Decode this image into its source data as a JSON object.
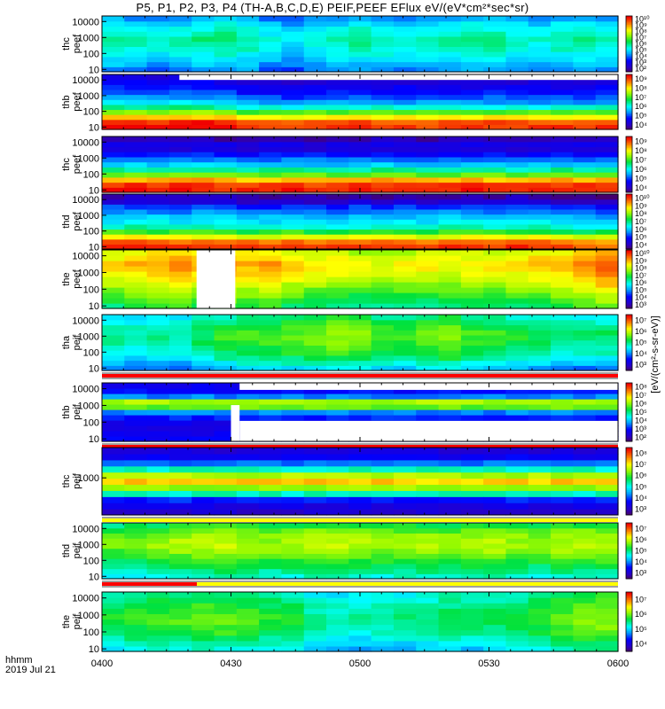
{
  "chart_data": {
    "type": "heatmap",
    "title": "P5, P1, P2, P3, P4 (TH-A,B,C,D,E) PEIF,PEEF EFlux eV/(eV*cm²*sec*sr)",
    "colorbar_label": "[eV/(cm²-s-sr-eV)]",
    "xaxis": {
      "label_line1": "hhmm",
      "label_line2": "2019 Jul 21",
      "ticks": [
        "0400",
        "0430",
        "0500",
        "0530",
        "0600"
      ],
      "range_minutes": [
        0,
        120
      ]
    },
    "panels": [
      {
        "ylabel_line1": "thc",
        "ylabel_line2": "peef",
        "yticks": [
          "10",
          "100",
          "1000",
          "10000"
        ],
        "cbar_ticks": [
          "10²",
          "10³",
          "10⁴",
          "10⁵",
          "10⁶",
          "10⁷",
          "10⁸",
          "10⁹",
          "10¹⁰"
        ],
        "profile": [
          0.3,
          0.34,
          0.38,
          0.41,
          0.44,
          0.46,
          0.47,
          0.45,
          0.42,
          0.38,
          0.32
        ],
        "time_mod": [
          0.02,
          0.0,
          -0.02,
          0.0,
          0.03,
          0.04,
          0.02,
          -0.03,
          -0.06,
          -0.02,
          0.0,
          0.02,
          0.01,
          -0.01,
          0.0,
          0.02,
          0.03,
          0.02,
          0.0,
          -0.02,
          0.02,
          0.02,
          0.01
        ],
        "gaps": [],
        "bar": null
      },
      {
        "ylabel_line1": "thb",
        "ylabel_line2": "peef",
        "yticks": [
          "10",
          "100",
          "1000",
          "10000"
        ],
        "cbar_ticks": [
          "10⁴",
          "10⁵",
          "10⁶",
          "10⁷",
          "10⁸",
          "10⁹"
        ],
        "profile": [
          0.96,
          0.93,
          0.78,
          0.62,
          0.46,
          0.34,
          0.27,
          0.22,
          0.18,
          0.14,
          0.08
        ],
        "time_mod": [
          0.04,
          0.04,
          0.03,
          0.05,
          0.04,
          0.02,
          -0.02,
          -0.02,
          -0.03,
          -0.02,
          -0.02,
          -0.01,
          -0.02,
          -0.01,
          -0.02,
          -0.01,
          -0.02,
          -0.01,
          -0.02,
          -0.02,
          -0.01,
          -0.02,
          -0.01
        ],
        "gaps": [
          [
            18,
            120,
            0.9,
            1.0
          ]
        ],
        "bar": null
      },
      {
        "ylabel_line1": "thc",
        "ylabel_line2": "peef",
        "yticks": [
          "10",
          "100",
          "1000",
          "10000"
        ],
        "cbar_ticks": [
          "10⁴",
          "10⁵",
          "10⁶",
          "10⁷",
          "10⁸",
          "10⁹"
        ],
        "profile": [
          0.97,
          0.94,
          0.82,
          0.62,
          0.48,
          0.36,
          0.28,
          0.2,
          0.12,
          0.14,
          0.06
        ],
        "time_mod": [
          0.02,
          0.01,
          0.0,
          0.01,
          0.02,
          0.0,
          -0.01,
          0.0,
          0.01,
          0.0,
          -0.01,
          0.0,
          0.01,
          0.0,
          -0.01,
          0.0,
          0.01,
          0.0,
          -0.01,
          0.0,
          0.01,
          0.0,
          0.0
        ],
        "gaps": [],
        "bar": null
      },
      {
        "ylabel_line1": "thd",
        "ylabel_line2": "peef",
        "yticks": [
          "10",
          "100",
          "1000",
          "10000"
        ],
        "cbar_ticks": [
          "10⁴",
          "10⁵",
          "10⁶",
          "10⁷",
          "10⁸",
          "10⁹",
          "10¹⁰"
        ],
        "profile": [
          0.95,
          0.9,
          0.74,
          0.58,
          0.46,
          0.4,
          0.36,
          0.3,
          0.24,
          0.12,
          0.06
        ],
        "time_mod": [
          0.01,
          0.02,
          0.01,
          0.0,
          0.02,
          0.01,
          -0.02,
          -0.01,
          0.0,
          -0.02,
          -0.01,
          0.0,
          -0.01,
          0.0,
          -0.01,
          0.0,
          0.01,
          0.0,
          0.01,
          0.0,
          -0.02,
          -0.04,
          -0.05
        ],
        "gaps": [],
        "bar": null
      },
      {
        "ylabel_line1": "the",
        "ylabel_line2": "peef",
        "yticks": [
          "10",
          "100",
          "1000",
          "10000"
        ],
        "cbar_ticks": [
          "10³",
          "10⁴",
          "10⁵",
          "10⁶",
          "10⁷",
          "10⁸",
          "10⁹",
          "10¹⁰"
        ],
        "profile": [
          0.52,
          0.56,
          0.6,
          0.64,
          0.68,
          0.72,
          0.75,
          0.78,
          0.79,
          0.76,
          0.72
        ],
        "time_mod": [
          0.0,
          0.03,
          0.06,
          0.06,
          0.04,
          0.07,
          0.04,
          0.06,
          0.01,
          -0.01,
          -0.02,
          -0.04,
          -0.05,
          -0.04,
          -0.02,
          -0.03,
          -0.01,
          -0.02,
          0.0,
          0.02,
          0.04,
          0.08,
          0.12
        ],
        "gaps": [
          [
            22,
            31,
            0,
            1
          ]
        ],
        "bar": null
      },
      {
        "ylabel_line1": "tha",
        "ylabel_line2": "peif",
        "yticks": [
          "10",
          "100",
          "1000",
          "10000"
        ],
        "cbar_ticks": [
          "10³",
          "10⁴",
          "10⁵",
          "10⁶",
          "10⁷"
        ],
        "profile": [
          0.3,
          0.36,
          0.42,
          0.46,
          0.48,
          0.5,
          0.52,
          0.52,
          0.5,
          0.46,
          0.42
        ],
        "time_mod": [
          -0.02,
          -0.04,
          -0.03,
          -0.04,
          0.02,
          0.06,
          0.08,
          0.08,
          0.1,
          0.12,
          0.14,
          0.12,
          0.08,
          0.06,
          0.1,
          0.12,
          0.08,
          0.06,
          0.04,
          0.02,
          0.0,
          -0.01,
          0.0
        ],
        "gaps": [],
        "bar": "red"
      },
      {
        "ylabel_line1": "thb",
        "ylabel_line2": "peif",
        "yticks": [
          "10",
          "100",
          "1000",
          "10000"
        ],
        "cbar_ticks": [
          "10²",
          "10³",
          "10⁴",
          "10⁵",
          "10⁶",
          "10⁷",
          "10⁸"
        ],
        "profile": [
          0.18,
          0.16,
          0.14,
          0.16,
          0.22,
          0.3,
          0.62,
          0.68,
          0.3,
          0.2,
          0.16
        ],
        "time_mod": [
          0.0,
          0.0,
          0.0,
          0.0,
          0.0,
          0.0,
          0.0,
          0.0,
          0.0,
          0.0,
          0.0,
          0.0,
          0.0,
          0.0,
          0.0,
          0.0,
          0.0,
          0.0,
          0.0,
          0.0,
          0.0,
          0.0,
          0.0
        ],
        "gaps": [
          [
            30,
            32,
            0,
            0.62
          ],
          [
            32,
            120,
            0,
            0.35
          ],
          [
            32,
            120,
            0.88,
            1.0
          ]
        ],
        "bar": "red"
      },
      {
        "ylabel_line1": "thc",
        "ylabel_line2": "peif",
        "yticks": [
          "1000"
        ],
        "cbar_ticks": [
          "10³",
          "10⁴",
          "10⁵",
          "10⁶",
          "10⁷",
          "10⁸"
        ],
        "profile": [
          0.1,
          0.14,
          0.22,
          0.46,
          0.66,
          0.8,
          0.68,
          0.46,
          0.28,
          0.18,
          0.12
        ],
        "time_mod": [
          0.0,
          0.0,
          0.0,
          0.0,
          0.0,
          0.0,
          0.0,
          0.0,
          0.0,
          0.0,
          0.0,
          0.0,
          0.0,
          0.0,
          0.0,
          0.0,
          0.0,
          0.0,
          0.0,
          0.0,
          0.0,
          0.0,
          0.0
        ],
        "gaps": [],
        "bar": "yellow"
      },
      {
        "ylabel_line1": "thd",
        "ylabel_line2": "peif",
        "yticks": [
          "10",
          "100",
          "1000",
          "10000"
        ],
        "cbar_ticks": [
          "10³",
          "10⁴",
          "10⁵",
          "10⁶",
          "10⁷"
        ],
        "profile": [
          0.44,
          0.48,
          0.52,
          0.56,
          0.6,
          0.64,
          0.66,
          0.66,
          0.64,
          0.6,
          0.54
        ],
        "time_mod": [
          -0.04,
          -0.02,
          0.0,
          0.02,
          0.03,
          0.04,
          0.02,
          0.0,
          0.01,
          0.03,
          0.04,
          0.02,
          0.0,
          0.01,
          0.02,
          0.0,
          0.02,
          0.03,
          0.01,
          0.0,
          0.02,
          0.03,
          0.02
        ],
        "gaps": [],
        "bar": "redyellow"
      },
      {
        "ylabel_line1": "the",
        "ylabel_line2": "peif",
        "yticks": [
          "10",
          "100",
          "1000",
          "10000"
        ],
        "cbar_ticks": [
          "10⁴",
          "10⁵",
          "10⁶",
          "10⁷"
        ],
        "profile": [
          0.4,
          0.44,
          0.48,
          0.52,
          0.54,
          0.56,
          0.56,
          0.54,
          0.52,
          0.5,
          0.48
        ],
        "time_mod": [
          0.0,
          0.02,
          0.04,
          0.04,
          0.06,
          0.06,
          0.04,
          0.02,
          0.0,
          -0.06,
          -0.08,
          -0.08,
          -0.06,
          -0.06,
          -0.04,
          -0.02,
          -0.04,
          -0.02,
          0.0,
          0.02,
          0.06,
          0.08,
          0.1
        ],
        "gaps": [],
        "bar": null
      }
    ]
  }
}
